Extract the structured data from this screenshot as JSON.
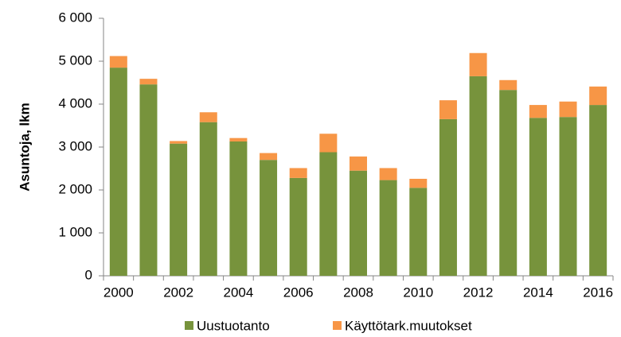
{
  "chart_data": {
    "type": "stacked_bar",
    "y_label": "Asuntoja, lkm",
    "categories": [
      "2000",
      null,
      "2002",
      null,
      "2004",
      null,
      "2006",
      null,
      "2008",
      null,
      "2010",
      null,
      "2012",
      null,
      "2014",
      null,
      "2016"
    ],
    "series": [
      {
        "name": "Uustuotanto",
        "color": "#77933c",
        "values": [
          4850,
          4460,
          3080,
          3580,
          3130,
          2700,
          2280,
          2880,
          2450,
          2230,
          2050,
          3650,
          4650,
          4330,
          3680,
          3700,
          3980
        ]
      },
      {
        "name": "Käyttötark.muutokset",
        "color": "#f79646",
        "values": [
          270,
          130,
          60,
          230,
          80,
          160,
          230,
          430,
          330,
          280,
          210,
          440,
          540,
          230,
          300,
          360,
          430
        ]
      }
    ],
    "ylim": [
      0,
      6000
    ],
    "yticks": [
      0,
      {
        "value": 1000,
        "label": "1 000"
      },
      {
        "value": 2000,
        "label": "2 000"
      },
      {
        "value": 3000,
        "label": "3 000"
      },
      {
        "value": 4000,
        "label": "4 000"
      },
      {
        "value": 5000,
        "label": "5 000"
      },
      {
        "value": 6000,
        "label": "6 000"
      }
    ],
    "legend": "bottom"
  }
}
